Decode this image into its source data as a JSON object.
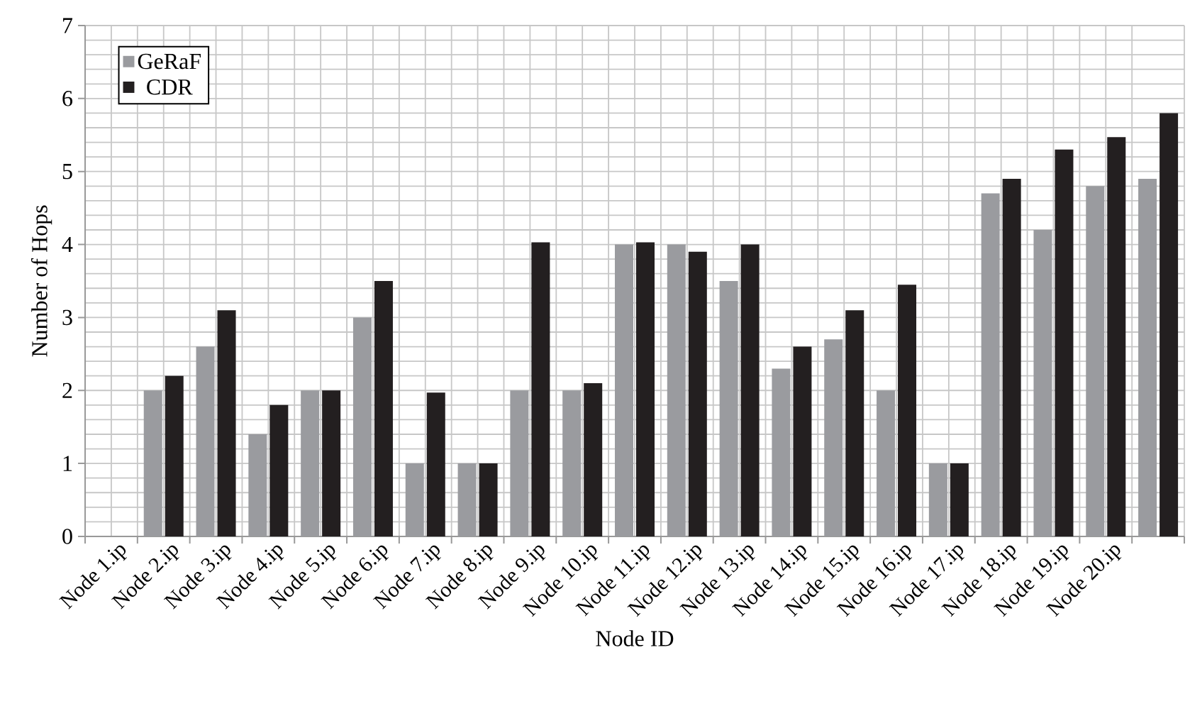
{
  "chart_data": {
    "type": "bar",
    "xlabel": "Node ID",
    "ylabel": "Number of Hops",
    "categories": [
      "Node 1.ip",
      "Node 2.ip",
      "Node 3.ip",
      "Node 4.ip",
      "Node 5.ip",
      "Node 6.ip",
      "Node 7.ip",
      "Node 8.ip",
      "Node 9.ip",
      "Node 10.ip",
      "Node 11.ip",
      "Node 12.ip",
      "Node 13.ip",
      "Node 14.ip",
      "Node 15.ip",
      "Node 16.ip",
      "Node 17.ip",
      "Node 18.ip",
      "Node 19.ip",
      "Node 20.ip",
      null
    ],
    "series": [
      {
        "name": "GeRaF",
        "color": "#9a9b9f",
        "values": [
          null,
          2,
          2.6,
          1.4,
          2,
          3,
          1,
          1,
          2,
          2,
          4,
          4,
          3.5,
          2.3,
          2.7,
          2,
          1,
          4.7,
          4.2,
          4.8,
          4.9
        ]
      },
      {
        "name": "CDR",
        "color": "#231f20",
        "values": [
          null,
          2.2,
          3.1,
          1.8,
          2,
          3.5,
          1.97,
          1,
          4.03,
          2.1,
          4.03,
          3.9,
          4,
          2.6,
          3.1,
          3.45,
          1,
          4.9,
          5.3,
          5.47,
          5.8
        ]
      }
    ],
    "ylim": [
      0,
      7
    ],
    "yticks": [
      0,
      1,
      2,
      3,
      4,
      5,
      6,
      7
    ],
    "grid": true,
    "legend": "top left"
  }
}
